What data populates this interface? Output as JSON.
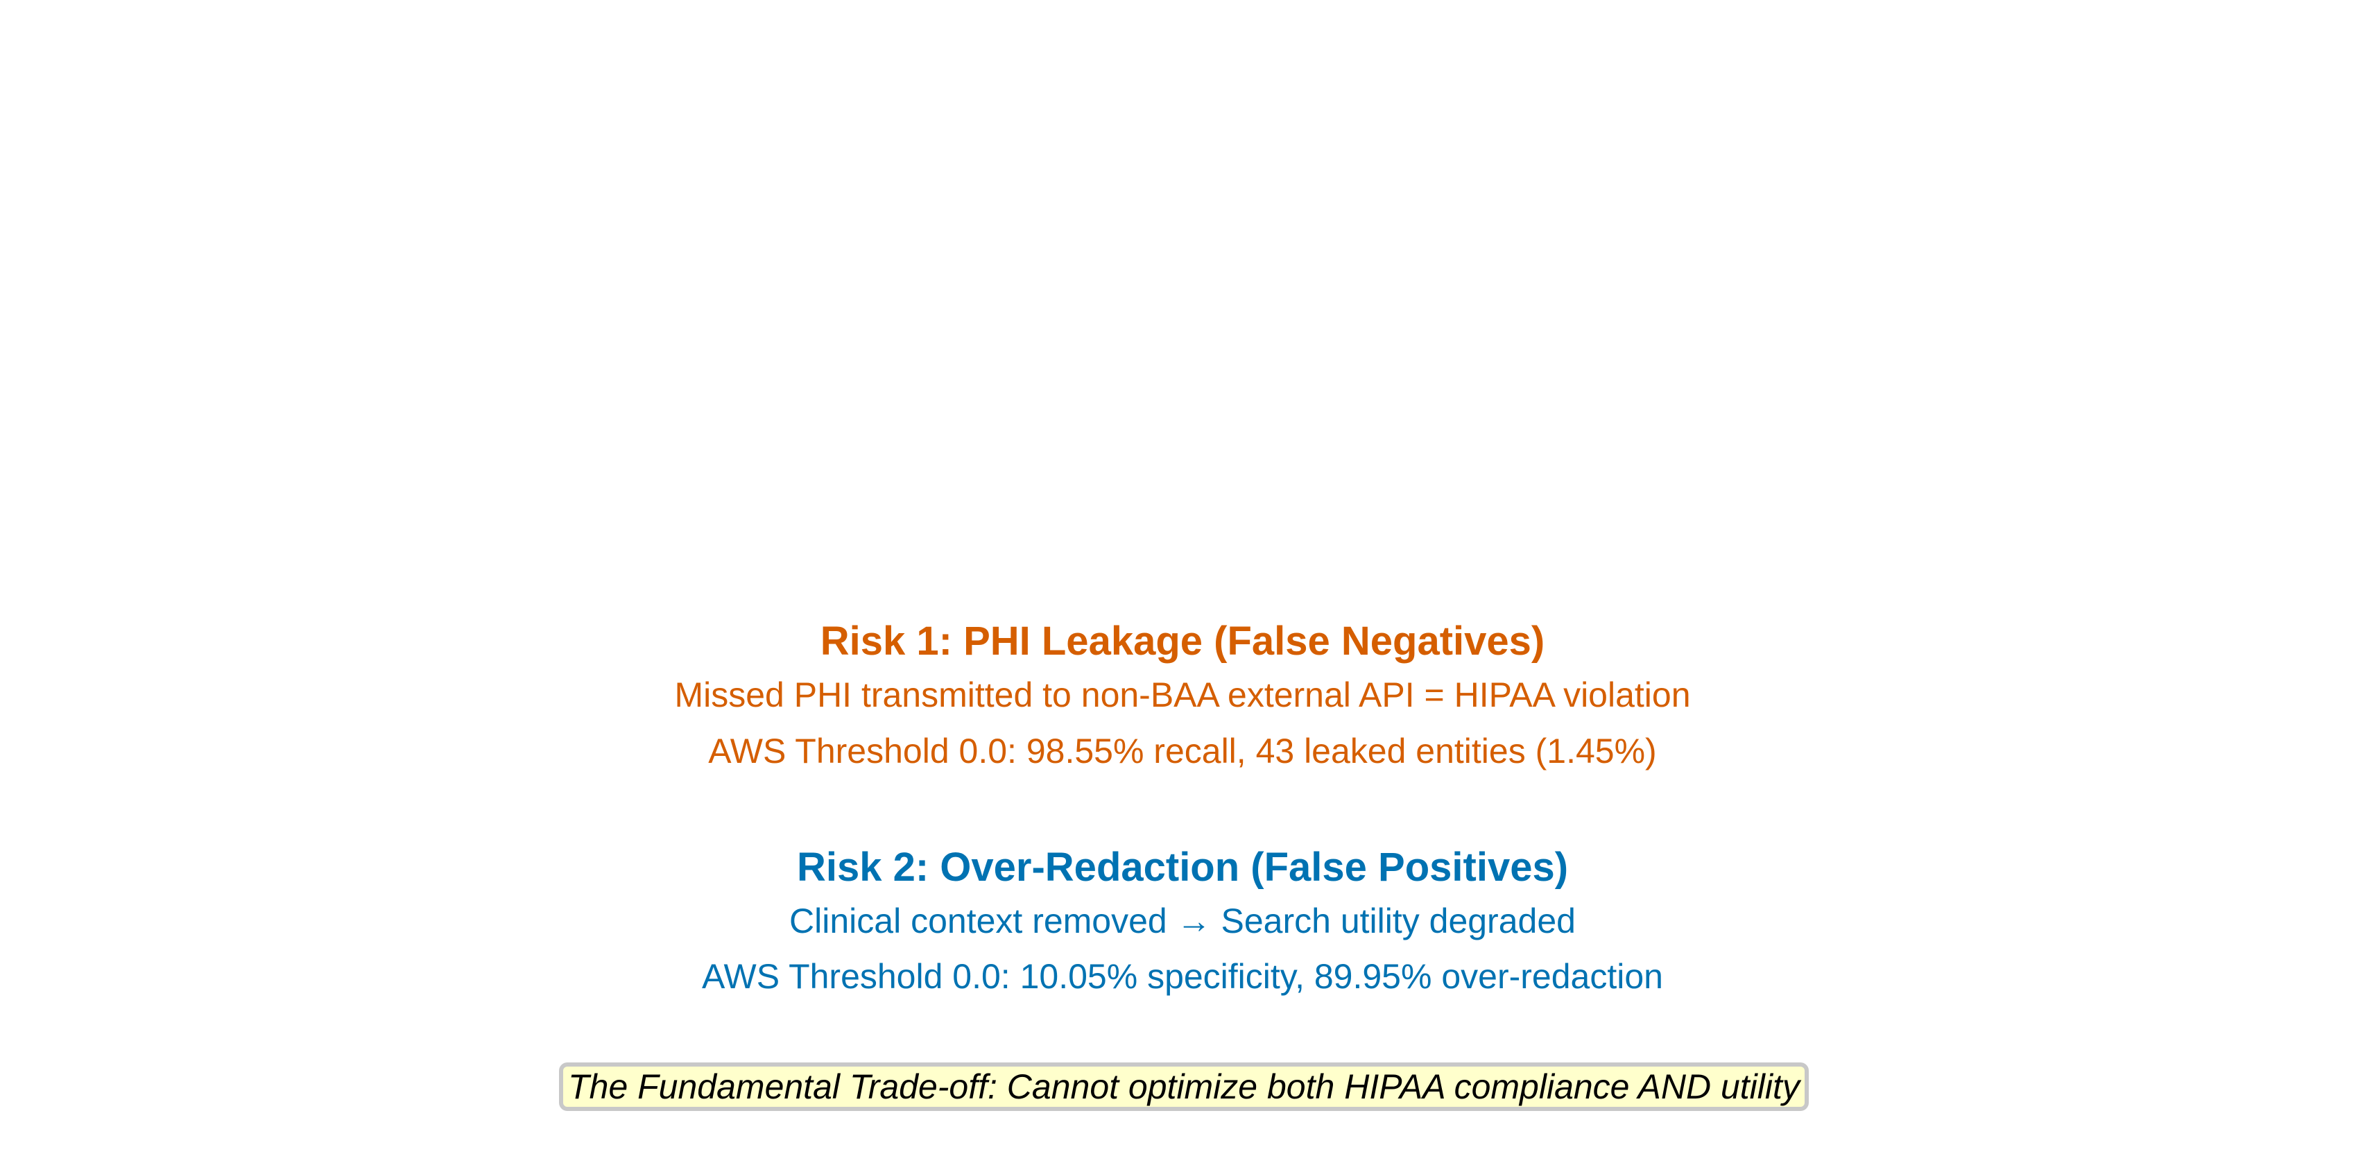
{
  "colors": {
    "risk1": "#d55e00",
    "risk2": "#0072b2",
    "tradeoff_background": "#ffffcc",
    "tradeoff_border": "#c8c8c8"
  },
  "risk1": {
    "heading": "Risk 1: PHI Leakage (False Negatives)",
    "line1": "Missed PHI transmitted to non-BAA external API = HIPAA violation",
    "line2": "AWS Threshold 0.0: 98.55% recall, 43 leaked entities (1.45%)"
  },
  "risk2": {
    "heading": "Risk 2: Over-Redaction (False Positives)",
    "line1": "Clinical context removed → Search utility degraded",
    "line2": "AWS Threshold 0.0: 10.05% specificity, 89.95% over-redaction"
  },
  "tradeoff": {
    "text": "The Fundamental Trade-off: Cannot optimize both HIPAA compliance AND utility"
  }
}
